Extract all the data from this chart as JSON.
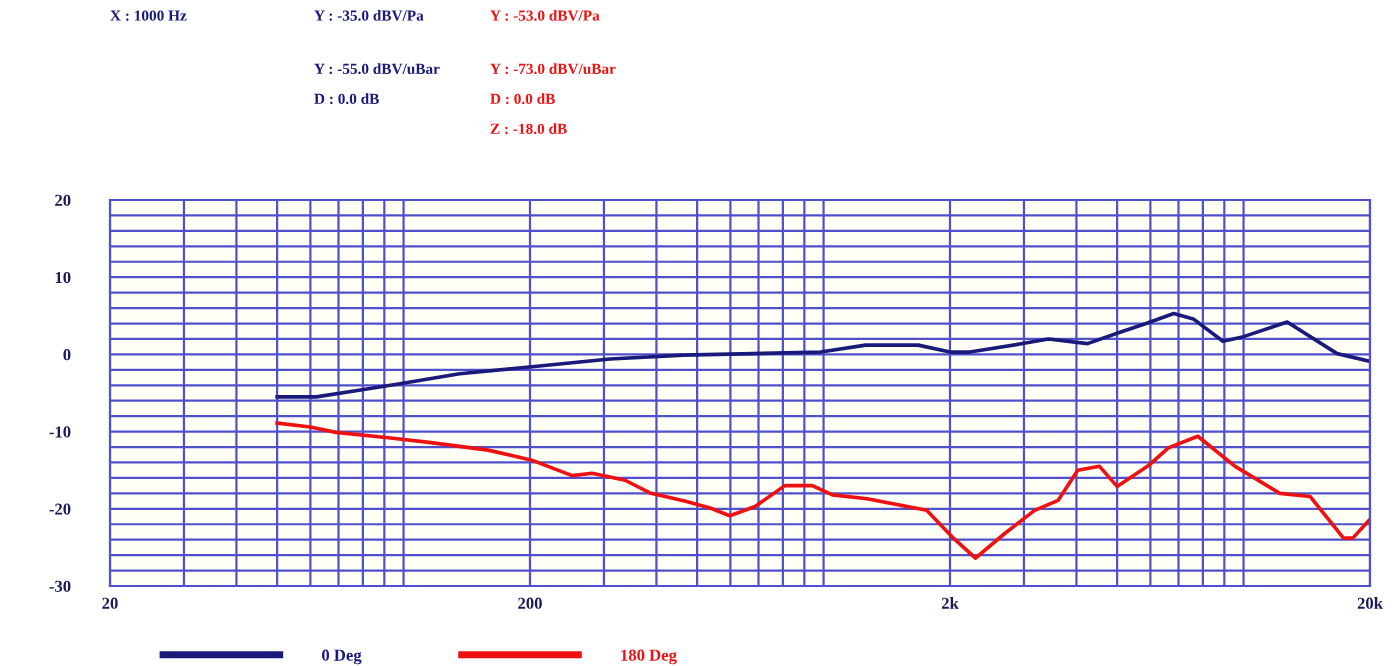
{
  "chart_data": {
    "type": "line",
    "annotations": [
      "X : 1000 Hz",
      "Y : -35.0 dBV/Pa",
      "Y : -55.0 dBV/uBar",
      "D : 0.0 dB",
      "Y : -53.0 dBV/Pa",
      "Y : -73.0 dBV/uBar",
      "D : 0.0 dB",
      "Z : -18.0 dB"
    ],
    "series": [
      {
        "name": "0 Deg",
        "color": "#1a1a7a",
        "x": [
          50,
          62,
          79,
          98,
          136,
          202,
          310,
          464,
          984,
          1260,
          1680,
          2000,
          2230,
          2980,
          3430,
          4250,
          5100,
          5860,
          6820,
          7590,
          8930,
          10000,
          12700,
          16700,
          20000
        ],
        "values": [
          -5.5,
          -5.5,
          -4.6,
          -3.8,
          -2.5,
          -1.6,
          -0.6,
          -0.1,
          0.3,
          1.2,
          1.2,
          0.3,
          0.3,
          1.4,
          2.0,
          1.4,
          2.9,
          4.0,
          5.3,
          4.6,
          1.7,
          2.3,
          4.2,
          0.1,
          -0.9
        ]
      },
      {
        "name": "180 Deg",
        "color": "#ee1111",
        "x": [
          50,
          60,
          69,
          92,
          115,
          159,
          202,
          252,
          281,
          337,
          388,
          467,
          537,
          598,
          687,
          809,
          940,
          1050,
          1270,
          1760,
          2020,
          2300,
          2700,
          3180,
          3620,
          4030,
          4540,
          5000,
          5940,
          6620,
          7780,
          9550,
          12200,
          14400,
          17300,
          18200,
          19900
        ],
        "values": [
          -8.9,
          -9.4,
          -10.1,
          -10.8,
          -11.4,
          -12.4,
          -13.7,
          -15.7,
          -15.4,
          -16.3,
          -18.0,
          -19.0,
          -19.9,
          -20.9,
          -19.7,
          -17.0,
          -17.0,
          -18.2,
          -18.7,
          -20.2,
          -23.6,
          -26.4,
          -23.2,
          -20.2,
          -18.9,
          -15.0,
          -14.5,
          -17.1,
          -14.4,
          -12.1,
          -10.6,
          -14.5,
          -18.0,
          -18.4,
          -23.8,
          -23.8,
          -21.5
        ]
      }
    ],
    "log": "x",
    "xlim": [
      20,
      20000
    ],
    "xticks": [
      20,
      {
        "value": 30,
        "label": null
      },
      {
        "value": 40,
        "label": null
      },
      {
        "value": 50,
        "label": null
      },
      {
        "value": 60,
        "label": null
      },
      {
        "value": 70,
        "label": null
      },
      {
        "value": 80,
        "label": null
      },
      {
        "value": 90,
        "label": null
      },
      {
        "value": 100,
        "label": null
      },
      200,
      {
        "value": 300,
        "label": null
      },
      {
        "value": 400,
        "label": null
      },
      {
        "value": 500,
        "label": null
      },
      {
        "value": 600,
        "label": null
      },
      {
        "value": 700,
        "label": null
      },
      {
        "value": 800,
        "label": null
      },
      {
        "value": 900,
        "label": null
      },
      {
        "value": 1000,
        "label": null
      },
      {
        "value": 2000,
        "label": "2k"
      },
      {
        "value": 3000,
        "label": null
      },
      {
        "value": 4000,
        "label": null
      },
      {
        "value": 5000,
        "label": null
      },
      {
        "value": 6000,
        "label": null
      },
      {
        "value": 7000,
        "label": null
      },
      {
        "value": 8000,
        "label": null
      },
      {
        "value": 9000,
        "label": null
      },
      {
        "value": 10000,
        "label": null
      },
      {
        "value": 20000,
        "label": "20k"
      }
    ],
    "ylim": [
      -30,
      20
    ],
    "yticks": [
      -30,
      {
        "value": -28,
        "label": null
      },
      {
        "value": -26,
        "label": null
      },
      {
        "value": -24,
        "label": null
      },
      {
        "value": -22,
        "label": null
      },
      -20,
      {
        "value": -18,
        "label": null
      },
      {
        "value": -16,
        "label": null
      },
      {
        "value": -14,
        "label": null
      },
      {
        "value": -12,
        "label": null
      },
      -10,
      {
        "value": -8,
        "label": null
      },
      {
        "value": -6,
        "label": null
      },
      {
        "value": -4,
        "label": null
      },
      {
        "value": -2,
        "label": null
      },
      0,
      {
        "value": 2,
        "label": null
      },
      {
        "value": 4,
        "label": null
      },
      {
        "value": 6,
        "label": null
      },
      {
        "value": 8,
        "label": null
      },
      10,
      {
        "value": 12,
        "label": null
      },
      {
        "value": 14,
        "label": null
      },
      {
        "value": 16,
        "label": null
      },
      {
        "value": 18,
        "label": null
      },
      20
    ],
    "grid": true,
    "legend": "bottom",
    "marker": "none",
    "line_style": "solid"
  }
}
